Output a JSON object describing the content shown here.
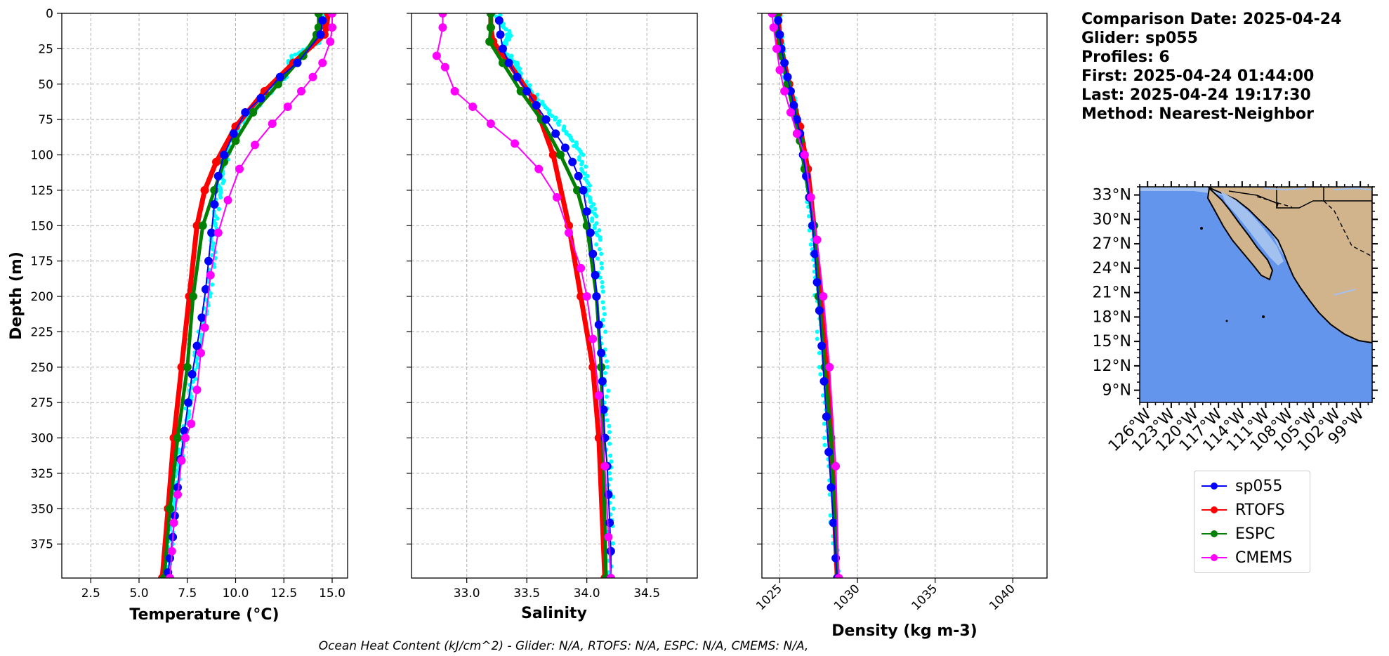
{
  "figure": {
    "footer": "Ocean Heat Content (kJ/cm^2) - Glider: N/A,  RTOFS: N/A,  ESPC: N/A,  CMEMS: N/A,",
    "info_lines": [
      "Comparison Date: 2025-04-24",
      "",
      "Glider: sp055",
      "Profiles: 6",
      "First: 2025-04-24 01:44:00",
      "Last: 2025-04-24 19:17:30",
      "Method: Nearest-Neighbor"
    ]
  },
  "legend": [
    {
      "name": "sp055",
      "color": "#0000ff"
    },
    {
      "name": "RTOFS",
      "color": "#ff0000"
    },
    {
      "name": "ESPC",
      "color": "#008000"
    },
    {
      "name": "CMEMS",
      "color": "#ff00ff"
    }
  ],
  "colors": {
    "glider_raw": "#00ffff",
    "ocean": "#6495ed",
    "shelf": "#a3c1ee",
    "land": "#d2b48c",
    "grid": "#b0b0b0"
  },
  "chart_data": [
    {
      "type": "line",
      "panel": "temperature",
      "xlabel": "Temperature (°C)",
      "ylabel": "Depth (m)",
      "xlim": [
        1.0,
        15.8
      ],
      "xticks": [
        2.5,
        5.0,
        7.5,
        10.0,
        12.5,
        15.0
      ],
      "xtick_labels": [
        "2.5",
        "5.0",
        "7.5",
        "10.0",
        "12.5",
        "15.0"
      ],
      "ylim": [
        399,
        0
      ],
      "yticks": [
        0,
        25,
        50,
        75,
        100,
        125,
        150,
        175,
        200,
        225,
        250,
        275,
        300,
        325,
        350,
        375
      ],
      "grid": true,
      "glider_raw": [
        [
          14.5,
          0
        ],
        [
          14.3,
          20
        ],
        [
          13.0,
          30
        ],
        [
          12.5,
          45
        ],
        [
          11.5,
          60
        ],
        [
          10.5,
          75
        ],
        [
          9.8,
          90
        ],
        [
          9.4,
          110
        ],
        [
          9.1,
          130
        ],
        [
          8.9,
          150
        ],
        [
          8.8,
          175
        ],
        [
          8.6,
          200
        ],
        [
          8.2,
          225
        ],
        [
          7.9,
          250
        ],
        [
          7.6,
          275
        ],
        [
          7.3,
          300
        ],
        [
          7.0,
          325
        ],
        [
          6.8,
          350
        ],
        [
          6.6,
          375
        ],
        [
          6.5,
          399
        ]
      ],
      "series": [
        {
          "name": "sp055",
          "color": "#0000ff",
          "width": 2,
          "markers": true,
          "x": [
            14.5,
            14.4,
            13.2,
            12.3,
            11.3,
            10.5,
            9.9,
            9.4,
            9.1,
            8.9,
            8.75,
            8.6,
            8.45,
            8.25,
            8.0,
            7.75,
            7.55,
            7.35,
            7.15,
            7.0,
            6.85,
            6.75,
            6.6,
            6.5
          ],
          "y": [
            5,
            15,
            35,
            45,
            60,
            70,
            85,
            100,
            115,
            135,
            155,
            175,
            195,
            215,
            235,
            255,
            275,
            295,
            315,
            335,
            355,
            370,
            385,
            395
          ]
        },
        {
          "name": "RTOFS",
          "color": "#ff0000",
          "width": 7,
          "markers": true,
          "x": [
            14.8,
            14.7,
            14.6,
            13.0,
            11.5,
            10.0,
            9.0,
            8.4,
            8.0,
            7.6,
            7.2,
            6.8,
            6.5,
            6.2
          ],
          "y": [
            0,
            10,
            15,
            35,
            55,
            80,
            105,
            125,
            150,
            200,
            250,
            300,
            350,
            399
          ]
        },
        {
          "name": "ESPC",
          "color": "#008000",
          "width": 5,
          "markers": true,
          "x": [
            14.3,
            14.3,
            14.2,
            13.5,
            12.2,
            10.9,
            10.0,
            9.4,
            8.9,
            8.3,
            7.8,
            7.5,
            7.0,
            6.6,
            6.3
          ],
          "y": [
            0,
            10,
            15,
            30,
            50,
            70,
            90,
            105,
            125,
            150,
            200,
            250,
            300,
            350,
            399
          ]
        },
        {
          "name": "CMEMS",
          "color": "#ff00ff",
          "width": 2,
          "markers": true,
          "x": [
            15.0,
            15.0,
            14.9,
            14.5,
            14.0,
            13.4,
            12.7,
            11.9,
            11.0,
            10.2,
            9.6,
            9.1,
            8.7,
            8.4,
            8.2,
            8.0,
            7.7,
            7.4,
            7.2,
            7.0,
            6.8,
            6.7,
            6.6
          ],
          "y": [
            0,
            10,
            20,
            35,
            45,
            55,
            66,
            78,
            93,
            110,
            132,
            155,
            185,
            222,
            240,
            266,
            290,
            300,
            316,
            340,
            360,
            380,
            399
          ]
        }
      ]
    },
    {
      "type": "line",
      "panel": "salinity",
      "xlabel": "Salinity",
      "xlim": [
        32.54,
        34.92
      ],
      "xticks": [
        33.0,
        33.5,
        34.0,
        34.5
      ],
      "xtick_labels": [
        "33.0",
        "33.5",
        "34.0",
        "34.5"
      ],
      "ylim": [
        399,
        0
      ],
      "grid": true,
      "glider_raw": [
        [
          33.25,
          0
        ],
        [
          33.35,
          15
        ],
        [
          33.3,
          25
        ],
        [
          33.4,
          35
        ],
        [
          33.45,
          45
        ],
        [
          33.55,
          55
        ],
        [
          33.7,
          70
        ],
        [
          33.85,
          85
        ],
        [
          33.95,
          100
        ],
        [
          34.0,
          120
        ],
        [
          34.05,
          140
        ],
        [
          34.1,
          160
        ],
        [
          34.12,
          200
        ],
        [
          34.15,
          250
        ],
        [
          34.18,
          300
        ],
        [
          34.2,
          350
        ],
        [
          34.2,
          399
        ]
      ],
      "series": [
        {
          "name": "sp055",
          "color": "#0000ff",
          "width": 2,
          "markers": true,
          "x": [
            33.27,
            33.28,
            33.3,
            33.35,
            33.42,
            33.5,
            33.58,
            33.66,
            33.74,
            33.82,
            33.88,
            33.93,
            33.97,
            34.0,
            34.03,
            34.05,
            34.07,
            34.08,
            34.1,
            34.12,
            34.13,
            34.14,
            34.15,
            34.17,
            34.18,
            34.19,
            34.2,
            34.2
          ],
          "y": [
            5,
            15,
            25,
            35,
            45,
            55,
            65,
            75,
            85,
            95,
            105,
            115,
            125,
            140,
            155,
            170,
            185,
            200,
            220,
            240,
            260,
            280,
            300,
            320,
            340,
            360,
            380,
            399
          ]
        },
        {
          "name": "RTOFS",
          "color": "#ff0000",
          "width": 7,
          "markers": true,
          "x": [
            33.2,
            33.2,
            33.22,
            33.35,
            33.55,
            33.72,
            33.85,
            33.95,
            34.05,
            34.1,
            34.15
          ],
          "y": [
            0,
            10,
            20,
            35,
            60,
            100,
            150,
            200,
            250,
            300,
            399
          ]
        },
        {
          "name": "ESPC",
          "color": "#008000",
          "width": 5,
          "markers": true,
          "x": [
            33.2,
            33.2,
            33.19,
            33.3,
            33.45,
            33.62,
            33.78,
            33.92,
            34.0,
            34.08,
            34.12,
            34.16
          ],
          "y": [
            0,
            10,
            20,
            35,
            55,
            75,
            100,
            125,
            150,
            200,
            250,
            399
          ]
        },
        {
          "name": "CMEMS",
          "color": "#ff00ff",
          "width": 2,
          "markers": true,
          "x": [
            32.8,
            32.8,
            32.75,
            32.82,
            32.9,
            33.05,
            33.2,
            33.4,
            33.6,
            33.75,
            33.85,
            33.95,
            34.0,
            34.05,
            34.1,
            34.15,
            34.18,
            34.2
          ],
          "y": [
            0,
            10,
            30,
            38,
            55,
            66,
            78,
            92,
            110,
            130,
            155,
            180,
            200,
            230,
            270,
            320,
            370,
            399
          ]
        }
      ]
    },
    {
      "type": "line",
      "panel": "density",
      "xlabel": "Density (kg m-3)",
      "xlim": [
        1023.85,
        1042.2
      ],
      "xticks": [
        1025,
        1030,
        1035,
        1040
      ],
      "xtick_labels": [
        "1025",
        "1030",
        "1035",
        "1040"
      ],
      "ylim": [
        399,
        0
      ],
      "grid": true,
      "glider_raw": [
        [
          1024.9,
          0
        ],
        [
          1025.0,
          20
        ],
        [
          1025.3,
          40
        ],
        [
          1025.8,
          60
        ],
        [
          1026.2,
          80
        ],
        [
          1026.6,
          100
        ],
        [
          1026.9,
          130
        ],
        [
          1027.2,
          170
        ],
        [
          1027.5,
          220
        ],
        [
          1027.9,
          280
        ],
        [
          1028.3,
          340
        ],
        [
          1028.7,
          399
        ]
      ],
      "series": [
        {
          "name": "sp055",
          "color": "#0000ff",
          "width": 2,
          "markers": true,
          "x": [
            1024.9,
            1025.0,
            1025.1,
            1025.3,
            1025.5,
            1025.7,
            1025.9,
            1026.1,
            1026.3,
            1026.5,
            1026.7,
            1026.9,
            1027.1,
            1027.25,
            1027.4,
            1027.55,
            1027.7,
            1027.85,
            1028.0,
            1028.15,
            1028.3,
            1028.45,
            1028.6,
            1028.7
          ],
          "y": [
            5,
            15,
            25,
            35,
            45,
            55,
            65,
            75,
            85,
            100,
            115,
            130,
            150,
            170,
            190,
            210,
            235,
            260,
            285,
            310,
            335,
            360,
            385,
            399
          ]
        },
        {
          "name": "RTOFS",
          "color": "#ff0000",
          "width": 7,
          "markers": true,
          "x": [
            1024.9,
            1025.0,
            1025.6,
            1026.3,
            1026.8,
            1027.2,
            1027.6,
            1028.0,
            1028.3,
            1028.7
          ],
          "y": [
            0,
            20,
            50,
            80,
            110,
            150,
            200,
            250,
            300,
            399
          ]
        },
        {
          "name": "ESPC",
          "color": "#008000",
          "width": 5,
          "markers": true,
          "x": [
            1024.8,
            1024.9,
            1025.1,
            1025.5,
            1025.9,
            1026.3,
            1026.6,
            1026.9,
            1027.2,
            1027.5,
            1027.9,
            1028.3,
            1028.7
          ],
          "y": [
            0,
            15,
            30,
            50,
            70,
            90,
            110,
            130,
            150,
            200,
            250,
            300,
            399
          ]
        },
        {
          "name": "CMEMS",
          "color": "#ff00ff",
          "width": 2,
          "markers": true,
          "x": [
            1024.5,
            1024.6,
            1024.8,
            1025.0,
            1025.3,
            1025.7,
            1026.1,
            1026.6,
            1027.0,
            1027.4,
            1027.8,
            1028.2,
            1028.6,
            1028.8
          ],
          "y": [
            0,
            10,
            25,
            40,
            55,
            70,
            85,
            100,
            130,
            160,
            200,
            250,
            320,
            399
          ]
        }
      ]
    }
  ],
  "map": {
    "lat_ticks": [
      "33°N",
      "30°N",
      "27°N",
      "24°N",
      "21°N",
      "18°N",
      "15°N",
      "12°N",
      "9°N"
    ],
    "lon_ticks": [
      "126°W",
      "123°W",
      "120°W",
      "117°W",
      "114°W",
      "111°W",
      "108°W",
      "105°W",
      "102°W",
      "99°W"
    ],
    "lon_range": [
      -127,
      -97.5
    ],
    "lat_range": [
      7.5,
      34
    ]
  }
}
